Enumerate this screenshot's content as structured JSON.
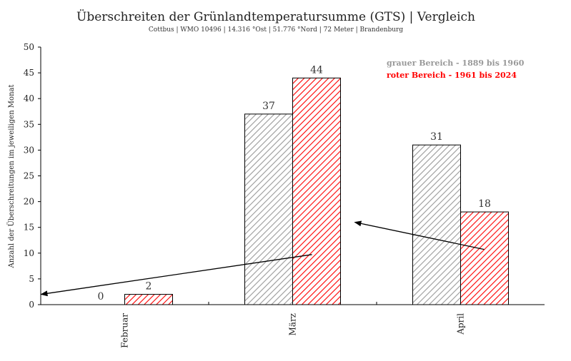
{
  "chart_data": {
    "type": "bar",
    "title": "Überschreiten der Grünlandtemperatursumme (GTS) | Vergleich",
    "subtitle": "Cottbus | WMO 10496 | 14.316 °Ost | 51.776 °Nord | 72 Meter | Brandenburg",
    "ylabel": "Anzahl der Überschreitungen im jeweiligen Monat",
    "xlabel": "",
    "categories": [
      "Februar",
      "März",
      "April"
    ],
    "series": [
      {
        "name": "grauer Bereich - 1889 bis 1960",
        "values": [
          0,
          37,
          31
        ],
        "color": "#999999"
      },
      {
        "name": "roter Bereich - 1961 bis 2024",
        "values": [
          2,
          44,
          18
        ],
        "color": "#ff0000"
      }
    ],
    "data_labels": [
      [
        "0",
        "37",
        "31"
      ],
      [
        "2",
        "44",
        "18"
      ]
    ],
    "ylim": [
      0,
      50
    ],
    "yticks": [
      0,
      5,
      10,
      15,
      20,
      25,
      30,
      35,
      40,
      45,
      50
    ],
    "grid": false,
    "legend_position": "top-right",
    "annotations": [
      {
        "type": "arrow",
        "from": [
          "April",
          11
        ],
        "to": [
          "März",
          16
        ]
      },
      {
        "type": "arrow",
        "from": [
          "März",
          10
        ],
        "to": [
          "Februar",
          2
        ]
      }
    ]
  }
}
